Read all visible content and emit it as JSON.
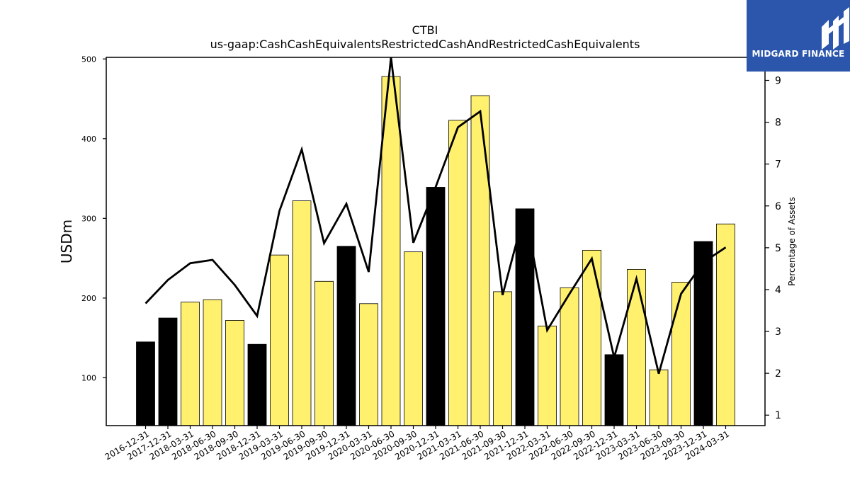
{
  "chart_data": {
    "type": "bar",
    "title": "CTBI",
    "subtitle": "us-gaap:CashCashEquivalentsRestrictedCashAndRestrictedCashEquivalents",
    "ylabel": "USDm",
    "y2label": "Percentage of Assets",
    "ylim": [
      40,
      502
    ],
    "y2lim": [
      0.75,
      9.55
    ],
    "yticks": [
      100,
      200,
      300,
      400,
      500
    ],
    "y2ticks": [
      1,
      2,
      3,
      4,
      5,
      6,
      7,
      8,
      9
    ],
    "categories": [
      "2016-12-31",
      "2017-12-31",
      "2018-03-31",
      "2018-06-30",
      "2018-09-30",
      "2018-12-31",
      "2019-03-31",
      "2019-06-30",
      "2019-09-30",
      "2019-12-31",
      "2020-03-31",
      "2020-06-30",
      "2020-09-30",
      "2020-12-31",
      "2021-03-31",
      "2021-06-30",
      "2021-09-30",
      "2021-12-31",
      "2022-03-31",
      "2022-06-30",
      "2022-09-30",
      "2022-12-31",
      "2023-03-31",
      "2023-06-30",
      "2023-09-30",
      "2023-12-31",
      "2024-03-31"
    ],
    "series": [
      {
        "type": "bar",
        "values": [
          145,
          175,
          195,
          198,
          172,
          142,
          254,
          322,
          221,
          265,
          193,
          478,
          258,
          339,
          423,
          454,
          208,
          312,
          165,
          213,
          260,
          129,
          236,
          110,
          220,
          271,
          293
        ]
      },
      {
        "type": "line",
        "axis": "right",
        "values": [
          3.67,
          4.23,
          4.63,
          4.71,
          4.11,
          3.37,
          5.88,
          7.35,
          5.11,
          6.05,
          4.42,
          9.55,
          5.12,
          6.45,
          7.88,
          8.26,
          3.87,
          5.88,
          3.03,
          3.9,
          4.74,
          2.38,
          4.26,
          1.99,
          3.9,
          4.65,
          5.01
        ]
      }
    ],
    "bar_colors": {
      "year_end": "#000000",
      "quarter": "#fff06e"
    },
    "bar_is_year_end": [
      true,
      true,
      false,
      false,
      false,
      true,
      false,
      false,
      false,
      true,
      false,
      false,
      false,
      true,
      false,
      false,
      false,
      true,
      false,
      false,
      false,
      true,
      false,
      false,
      false,
      true,
      false
    ],
    "line_color": "#000000"
  },
  "logo": {
    "text": "MIDGARD FINANCE",
    "background": "#2b56ac"
  }
}
